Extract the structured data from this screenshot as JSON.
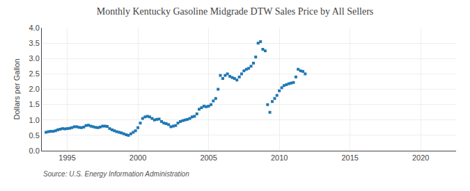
{
  "chart_data": {
    "type": "scatter",
    "title": "Monthly Kentucky Gasoline Midgrade DTW Sales Price by All Sellers",
    "ylabel": "Dollars per Gallon",
    "annotations": [
      "Source: U.S. Energy Information Administration"
    ],
    "marker": "square",
    "grid": true,
    "xlim": [
      1993.2,
      2022.5
    ],
    "xticks": [
      1995,
      2000,
      2005,
      2010,
      2015,
      2020
    ],
    "ylim": [
      0.0,
      4.0
    ],
    "yticks": [
      {
        "value": 0.0,
        "label": "0.0"
      },
      0.5,
      {
        "value": 1.0,
        "label": "1.0"
      },
      1.5,
      {
        "value": 2.0,
        "label": "2.0"
      },
      2.5,
      {
        "value": 3.0,
        "label": "3.0"
      },
      3.5,
      {
        "value": 4.0,
        "label": "4.0"
      }
    ],
    "x": [
      1993.5,
      1993.67,
      1993.83,
      1994.0,
      1994.17,
      1994.33,
      1994.5,
      1994.67,
      1994.83,
      1995.0,
      1995.17,
      1995.33,
      1995.5,
      1995.67,
      1995.83,
      1996.0,
      1996.17,
      1996.33,
      1996.5,
      1996.67,
      1996.83,
      1997.0,
      1997.17,
      1997.33,
      1997.5,
      1997.67,
      1997.83,
      1998.0,
      1998.17,
      1998.33,
      1998.5,
      1998.67,
      1998.83,
      1999.0,
      1999.17,
      1999.33,
      1999.5,
      1999.67,
      1999.83,
      2000.0,
      2000.17,
      2000.33,
      2000.5,
      2000.67,
      2000.83,
      2001.0,
      2001.17,
      2001.33,
      2001.5,
      2001.67,
      2001.83,
      2002.0,
      2002.17,
      2002.33,
      2002.5,
      2002.67,
      2002.83,
      2003.0,
      2003.17,
      2003.33,
      2003.5,
      2003.67,
      2003.83,
      2004.0,
      2004.17,
      2004.33,
      2004.5,
      2004.67,
      2004.83,
      2005.0,
      2005.17,
      2005.33,
      2005.5,
      2005.67,
      2005.83,
      2006.0,
      2006.17,
      2006.33,
      2006.5,
      2006.67,
      2006.83,
      2007.0,
      2007.17,
      2007.33,
      2007.5,
      2007.67,
      2007.83,
      2008.0,
      2008.17,
      2008.33,
      2008.5,
      2008.67,
      2008.83,
      2009.0,
      2009.17,
      2009.33,
      2009.5,
      2009.67,
      2009.83,
      2010.0,
      2010.17,
      2010.33,
      2010.5,
      2010.67,
      2010.83,
      2011.0,
      2011.17,
      2011.33,
      2011.5,
      2011.67,
      2011.83
    ],
    "values": [
      0.6,
      0.62,
      0.63,
      0.63,
      0.65,
      0.68,
      0.7,
      0.72,
      0.71,
      0.72,
      0.73,
      0.75,
      0.78,
      0.78,
      0.76,
      0.75,
      0.77,
      0.82,
      0.83,
      0.8,
      0.78,
      0.76,
      0.75,
      0.77,
      0.8,
      0.8,
      0.79,
      0.72,
      0.68,
      0.65,
      0.62,
      0.6,
      0.58,
      0.55,
      0.52,
      0.5,
      0.55,
      0.6,
      0.65,
      0.75,
      0.9,
      1.05,
      1.1,
      1.12,
      1.1,
      1.05,
      1.0,
      1.02,
      1.03,
      0.95,
      0.9,
      0.88,
      0.85,
      0.78,
      0.8,
      0.82,
      0.9,
      0.95,
      0.98,
      1.0,
      1.02,
      1.05,
      1.1,
      1.12,
      1.2,
      1.35,
      1.4,
      1.45,
      1.43,
      1.45,
      1.5,
      1.62,
      1.7,
      2.0,
      2.45,
      2.35,
      2.45,
      2.5,
      2.42,
      2.38,
      2.35,
      2.3,
      2.4,
      2.5,
      2.6,
      2.65,
      2.68,
      2.75,
      2.85,
      3.05,
      3.5,
      3.55,
      3.3,
      3.25,
      1.5,
      1.25,
      1.6,
      1.7,
      1.8,
      1.95,
      2.05,
      2.12,
      2.15,
      2.18,
      2.2,
      2.22,
      2.4,
      2.65,
      2.6,
      2.58,
      2.5
    ]
  }
}
